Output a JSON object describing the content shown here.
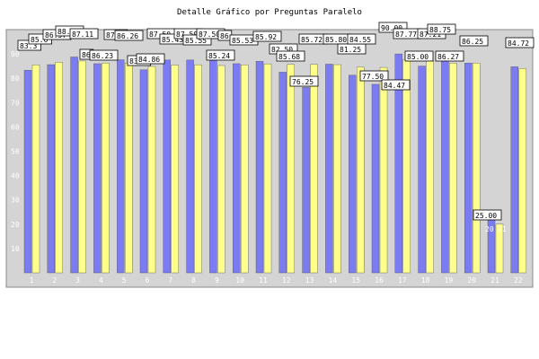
{
  "chart_data": {
    "type": "bar",
    "title": "Detalle Gráfico por Preguntas Paralelo",
    "xlabel": "",
    "ylabel": "",
    "ylim": [
      0,
      100
    ],
    "yticks": [
      10,
      20,
      30,
      40,
      50,
      60,
      70,
      80,
      90
    ],
    "grid": false,
    "legend": "none",
    "categories": [
      "1",
      "2",
      "3",
      "4",
      "5",
      "6",
      "7",
      "8",
      "9",
      "10",
      "11",
      "12",
      "13",
      "14",
      "15",
      "16",
      "17",
      "18",
      "19",
      "20",
      "21",
      "22"
    ],
    "series": [
      {
        "values": [
          83.3,
          85.6,
          88.75,
          86.0,
          87.6,
          83.5,
          87.5,
          87.5,
          87.5,
          86.0,
          87.0,
          82.5,
          76.25,
          85.8,
          81.25,
          77.5,
          90.0,
          85.0,
          88.75,
          86.27,
          25.0,
          84.72
        ],
        "color": "#7b7bf2"
      },
      {
        "values": [
          85.5,
          86.57,
          87.11,
          86.23,
          86.26,
          84.86,
          85.43,
          85.55,
          85.24,
          85.53,
          85.92,
          85.68,
          85.72,
          85.6,
          84.55,
          84.47,
          87.77,
          87.21,
          86.27,
          86.25,
          20.0,
          84.0
        ],
        "color": "#ffff8c"
      }
    ],
    "data_labels": [
      "83.3",
      "85.6",
      "86.57",
      "88.75",
      "87.11",
      "86",
      "86.23",
      "87.6",
      "86.26",
      "83.5",
      "84.86",
      "87.50",
      "85.43",
      "87.50",
      "85.55",
      "87.50",
      "85.24",
      "86",
      "85.53",
      "85.92",
      "82.50",
      "85.68",
      "76.25",
      "85.72",
      "85.80",
      "81.25",
      "84.55",
      "77.50",
      "84.47",
      "90.00",
      "87.77",
      "85.00",
      "87.21",
      "88.75",
      "86.27",
      "86.25",
      "25.00",
      "20",
      "21",
      "84.72"
    ],
    "colors": {
      "plot_bg": "#d4d4d4",
      "bar_a": "#7b7bf2",
      "bar_b": "#ffff8c",
      "axis": "#000000",
      "tick_text": "#ffffff"
    }
  }
}
